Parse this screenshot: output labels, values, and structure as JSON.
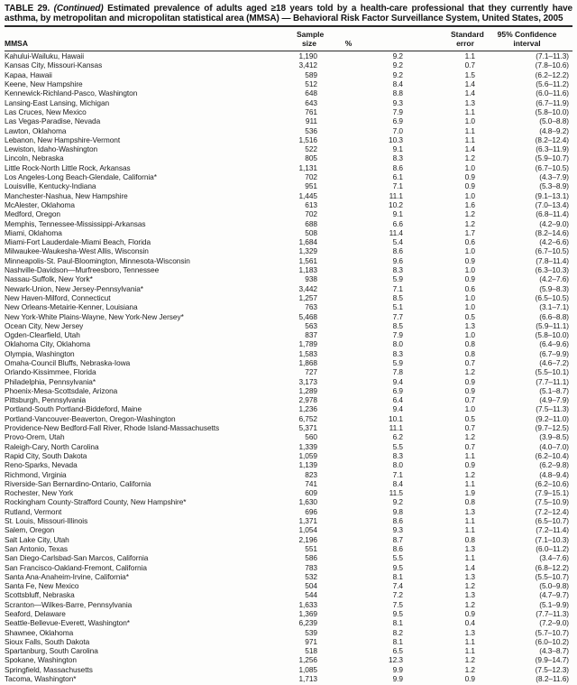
{
  "title": {
    "label": "TABLE 29.",
    "continued": "(Continued)",
    "text": "Estimated prevalence of adults aged ≥18 years told by a health-care professional that they currently have asthma, by metropolitan and micropolitan statistical area (MMSA) — Behavioral Risk Factor Surveillance System, United States, 2005"
  },
  "table": {
    "header": {
      "mmsa": "MMSA",
      "sample": [
        "Sample",
        "size"
      ],
      "pct": "%",
      "se": [
        "Standard",
        "error"
      ],
      "ci": [
        "95% Confidence",
        "interval"
      ]
    },
    "rows": [
      {
        "mmsa": "Kahului-Wailuku, Hawaii",
        "sample": "1,190",
        "pct": "9.2",
        "se": "1.1",
        "ci": "(7.1–11.3)"
      },
      {
        "mmsa": "Kansas City, Missouri-Kansas",
        "sample": "3,412",
        "pct": "9.2",
        "se": "0.7",
        "ci": "(7.8–10.6)"
      },
      {
        "mmsa": "Kapaa, Hawaii",
        "sample": "589",
        "pct": "9.2",
        "se": "1.5",
        "ci": "(6.2–12.2)"
      },
      {
        "mmsa": "Keene, New Hampshire",
        "sample": "512",
        "pct": "8.4",
        "se": "1.4",
        "ci": "(5.6–11.2)"
      },
      {
        "mmsa": "Kennewick-Richland-Pasco, Washington",
        "sample": "648",
        "pct": "8.8",
        "se": "1.4",
        "ci": "(6.0–11.6)"
      },
      {
        "mmsa": "Lansing-East Lansing, Michigan",
        "sample": "643",
        "pct": "9.3",
        "se": "1.3",
        "ci": "(6.7–11.9)"
      },
      {
        "mmsa": "Las Cruces, New Mexico",
        "sample": "761",
        "pct": "7.9",
        "se": "1.1",
        "ci": "(5.8–10.0)"
      },
      {
        "mmsa": "Las Vegas-Paradise, Nevada",
        "sample": "911",
        "pct": "6.9",
        "se": "1.0",
        "ci": "(5.0–8.8)"
      },
      {
        "mmsa": "Lawton, Oklahoma",
        "sample": "536",
        "pct": "7.0",
        "se": "1.1",
        "ci": "(4.8–9.2)"
      },
      {
        "mmsa": "Lebanon, New Hampshire-Vermont",
        "sample": "1,516",
        "pct": "10.3",
        "se": "1.1",
        "ci": "(8.2–12.4)"
      },
      {
        "mmsa": "Lewiston, Idaho-Washington",
        "sample": "522",
        "pct": "9.1",
        "se": "1.4",
        "ci": "(6.3–11.9)"
      },
      {
        "mmsa": "Lincoln, Nebraska",
        "sample": "805",
        "pct": "8.3",
        "se": "1.2",
        "ci": "(5.9–10.7)"
      },
      {
        "mmsa": "Little Rock-North Little Rock, Arkansas",
        "sample": "1,131",
        "pct": "8.6",
        "se": "1.0",
        "ci": "(6.7–10.5)"
      },
      {
        "mmsa": "Los Angeles-Long Beach-Glendale, California*",
        "sample": "702",
        "pct": "6.1",
        "se": "0.9",
        "ci": "(4.3–7.9)"
      },
      {
        "mmsa": "Louisville, Kentucky-Indiana",
        "sample": "951",
        "pct": "7.1",
        "se": "0.9",
        "ci": "(5.3–8.9)"
      },
      {
        "mmsa": "Manchester-Nashua, New Hampshire",
        "sample": "1,445",
        "pct": "11.1",
        "se": "1.0",
        "ci": "(9.1–13.1)"
      },
      {
        "mmsa": "McAlester, Oklahoma",
        "sample": "613",
        "pct": "10.2",
        "se": "1.6",
        "ci": "(7.0–13.4)"
      },
      {
        "mmsa": "Medford, Oregon",
        "sample": "702",
        "pct": "9.1",
        "se": "1.2",
        "ci": "(6.8–11.4)"
      },
      {
        "mmsa": "Memphis, Tennessee-Mississippi-Arkansas",
        "sample": "688",
        "pct": "6.6",
        "se": "1.2",
        "ci": "(4.2–9.0)"
      },
      {
        "mmsa": "Miami, Oklahoma",
        "sample": "508",
        "pct": "11.4",
        "se": "1.7",
        "ci": "(8.2–14.6)"
      },
      {
        "mmsa": "Miami-Fort Lauderdale-Miami Beach, Florida",
        "sample": "1,684",
        "pct": "5.4",
        "se": "0.6",
        "ci": "(4.2–6.6)"
      },
      {
        "mmsa": "Milwaukee-Waukesha-West Allis, Wisconsin",
        "sample": "1,329",
        "pct": "8.6",
        "se": "1.0",
        "ci": "(6.7–10.5)"
      },
      {
        "mmsa": "Minneapolis-St. Paul-Bloomington, Minnesota-Wisconsin",
        "sample": "1,561",
        "pct": "9.6",
        "se": "0.9",
        "ci": "(7.8–11.4)"
      },
      {
        "mmsa": "Nashville-Davidson—Murfreesboro, Tennessee",
        "sample": "1,183",
        "pct": "8.3",
        "se": "1.0",
        "ci": "(6.3–10.3)"
      },
      {
        "mmsa": "Nassau-Suffolk, New York*",
        "sample": "938",
        "pct": "5.9",
        "se": "0.9",
        "ci": "(4.2–7.6)"
      },
      {
        "mmsa": "Newark-Union, New Jersey-Pennsylvania*",
        "sample": "3,442",
        "pct": "7.1",
        "se": "0.6",
        "ci": "(5.9–8.3)"
      },
      {
        "mmsa": "New Haven-Milford, Connecticut",
        "sample": "1,257",
        "pct": "8.5",
        "se": "1.0",
        "ci": "(6.5–10.5)"
      },
      {
        "mmsa": "New Orleans-Metairie-Kenner, Louisiana",
        "sample": "763",
        "pct": "5.1",
        "se": "1.0",
        "ci": "(3.1–7.1)"
      },
      {
        "mmsa": "New York-White Plains-Wayne, New York-New Jersey*",
        "sample": "5,468",
        "pct": "7.7",
        "se": "0.5",
        "ci": "(6.6–8.8)"
      },
      {
        "mmsa": "Ocean City, New Jersey",
        "sample": "563",
        "pct": "8.5",
        "se": "1.3",
        "ci": "(5.9–11.1)"
      },
      {
        "mmsa": "Ogden-Clearfield, Utah",
        "sample": "837",
        "pct": "7.9",
        "se": "1.0",
        "ci": "(5.8–10.0)"
      },
      {
        "mmsa": "Oklahoma City, Oklahoma",
        "sample": "1,789",
        "pct": "8.0",
        "se": "0.8",
        "ci": "(6.4–9.6)"
      },
      {
        "mmsa": "Olympia, Washington",
        "sample": "1,583",
        "pct": "8.3",
        "se": "0.8",
        "ci": "(6.7–9.9)"
      },
      {
        "mmsa": "Omaha-Council Bluffs, Nebraska-Iowa",
        "sample": "1,868",
        "pct": "5.9",
        "se": "0.7",
        "ci": "(4.6–7.2)"
      },
      {
        "mmsa": "Orlando-Kissimmee, Florida",
        "sample": "727",
        "pct": "7.8",
        "se": "1.2",
        "ci": "(5.5–10.1)"
      },
      {
        "mmsa": "Philadelphia, Pennsylvania*",
        "sample": "3,173",
        "pct": "9.4",
        "se": "0.9",
        "ci": "(7.7–11.1)"
      },
      {
        "mmsa": "Phoenix-Mesa-Scottsdale, Arizona",
        "sample": "1,289",
        "pct": "6.9",
        "se": "0.9",
        "ci": "(5.1–8.7)"
      },
      {
        "mmsa": "Pittsburgh, Pennsylvania",
        "sample": "2,978",
        "pct": "6.4",
        "se": "0.7",
        "ci": "(4.9–7.9)"
      },
      {
        "mmsa": "Portland-South Portland-Biddeford, Maine",
        "sample": "1,236",
        "pct": "9.4",
        "se": "1.0",
        "ci": "(7.5–11.3)"
      },
      {
        "mmsa": "Portland-Vancouver-Beaverton, Oregon-Washington",
        "sample": "6,752",
        "pct": "10.1",
        "se": "0.5",
        "ci": "(9.2–11.0)"
      },
      {
        "mmsa": "Providence-New Bedford-Fall River, Rhode Island-Massachusetts",
        "sample": "5,371",
        "pct": "11.1",
        "se": "0.7",
        "ci": "(9.7–12.5)"
      },
      {
        "mmsa": "Provo-Orem, Utah",
        "sample": "560",
        "pct": "6.2",
        "se": "1.2",
        "ci": "(3.9–8.5)"
      },
      {
        "mmsa": "Raleigh-Cary, North Carolina",
        "sample": "1,339",
        "pct": "5.5",
        "se": "0.7",
        "ci": "(4.0–7.0)"
      },
      {
        "mmsa": "Rapid City, South Dakota",
        "sample": "1,059",
        "pct": "8.3",
        "se": "1.1",
        "ci": "(6.2–10.4)"
      },
      {
        "mmsa": "Reno-Sparks, Nevada",
        "sample": "1,139",
        "pct": "8.0",
        "se": "0.9",
        "ci": "(6.2–9.8)"
      },
      {
        "mmsa": "Richmond, Virginia",
        "sample": "823",
        "pct": "7.1",
        "se": "1.2",
        "ci": "(4.8–9.4)"
      },
      {
        "mmsa": "Riverside-San Bernardino-Ontario, California",
        "sample": "741",
        "pct": "8.4",
        "se": "1.1",
        "ci": "(6.2–10.6)"
      },
      {
        "mmsa": "Rochester, New York",
        "sample": "609",
        "pct": "11.5",
        "se": "1.9",
        "ci": "(7.9–15.1)"
      },
      {
        "mmsa": "Rockingham County-Strafford County, New Hampshire*",
        "sample": "1,630",
        "pct": "9.2",
        "se": "0.8",
        "ci": "(7.5–10.9)"
      },
      {
        "mmsa": "Rutland, Vermont",
        "sample": "696",
        "pct": "9.8",
        "se": "1.3",
        "ci": "(7.2–12.4)"
      },
      {
        "mmsa": "St. Louis, Missouri-Illinois",
        "sample": "1,371",
        "pct": "8.6",
        "se": "1.1",
        "ci": "(6.5–10.7)"
      },
      {
        "mmsa": "Salem, Oregon",
        "sample": "1,054",
        "pct": "9.3",
        "se": "1.1",
        "ci": "(7.2–11.4)"
      },
      {
        "mmsa": "Salt Lake City, Utah",
        "sample": "2,196",
        "pct": "8.7",
        "se": "0.8",
        "ci": "(7.1–10.3)"
      },
      {
        "mmsa": "San Antonio, Texas",
        "sample": "551",
        "pct": "8.6",
        "se": "1.3",
        "ci": "(6.0–11.2)"
      },
      {
        "mmsa": "San Diego-Carlsbad-San Marcos, California",
        "sample": "586",
        "pct": "5.5",
        "se": "1.1",
        "ci": "(3.4–7.6)"
      },
      {
        "mmsa": "San Francisco-Oakland-Fremont, California",
        "sample": "783",
        "pct": "9.5",
        "se": "1.4",
        "ci": "(6.8–12.2)"
      },
      {
        "mmsa": "Santa Ana-Anaheim-Irvine, California*",
        "sample": "532",
        "pct": "8.1",
        "se": "1.3",
        "ci": "(5.5–10.7)"
      },
      {
        "mmsa": "Santa Fe, New Mexico",
        "sample": "504",
        "pct": "7.4",
        "se": "1.2",
        "ci": "(5.0–9.8)"
      },
      {
        "mmsa": "Scottsbluff, Nebraska",
        "sample": "544",
        "pct": "7.2",
        "se": "1.3",
        "ci": "(4.7–9.7)"
      },
      {
        "mmsa": "Scranton—Wilkes-Barre, Pennsylvania",
        "sample": "1,633",
        "pct": "7.5",
        "se": "1.2",
        "ci": "(5.1–9.9)"
      },
      {
        "mmsa": "Seaford, Delaware",
        "sample": "1,369",
        "pct": "9.5",
        "se": "0.9",
        "ci": "(7.7–11.3)"
      },
      {
        "mmsa": "Seattle-Bellevue-Everett, Washington*",
        "sample": "6,239",
        "pct": "8.1",
        "se": "0.4",
        "ci": "(7.2–9.0)"
      },
      {
        "mmsa": "Shawnee, Oklahoma",
        "sample": "539",
        "pct": "8.2",
        "se": "1.3",
        "ci": "(5.7–10.7)"
      },
      {
        "mmsa": "Sioux Falls, South Dakota",
        "sample": "971",
        "pct": "8.1",
        "se": "1.1",
        "ci": "(6.0–10.2)"
      },
      {
        "mmsa": "Spartanburg, South Carolina",
        "sample": "518",
        "pct": "6.5",
        "se": "1.1",
        "ci": "(4.3–8.7)"
      },
      {
        "mmsa": "Spokane, Washington",
        "sample": "1,256",
        "pct": "12.3",
        "se": "1.2",
        "ci": "(9.9–14.7)"
      },
      {
        "mmsa": "Springfield, Massachusetts",
        "sample": "1,085",
        "pct": "9.9",
        "se": "1.2",
        "ci": "(7.5–12.3)"
      },
      {
        "mmsa": "Tacoma, Washington*",
        "sample": "1,713",
        "pct": "9.9",
        "se": "0.9",
        "ci": "(8.2–11.6)"
      }
    ]
  }
}
